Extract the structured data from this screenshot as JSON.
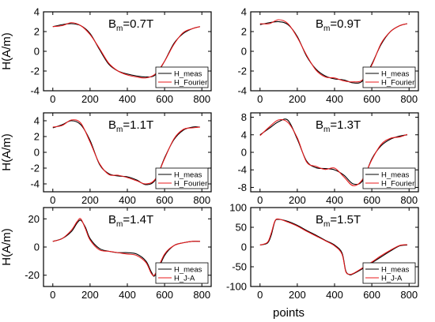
{
  "figure": {
    "xlabel": "points"
  },
  "chart_data": [
    {
      "type": "line",
      "annotation": {
        "base": "B",
        "sub": "m",
        "rest": "=0.7T"
      },
      "ylabel": "H(A/m)",
      "xlim": [
        -50,
        850
      ],
      "ylim": [
        -4,
        4
      ],
      "xticks": [
        0,
        200,
        400,
        600,
        800
      ],
      "yticks": [
        -4,
        -2,
        0,
        2,
        4
      ],
      "legend_position": "bottom-right",
      "series": [
        {
          "name": "H_meas",
          "color": "#000000",
          "x": [
            0,
            50,
            100,
            150,
            200,
            250,
            300,
            350,
            400,
            450,
            500,
            550,
            600,
            650,
            700,
            750,
            790
          ],
          "y": [
            2.5,
            2.7,
            2.8,
            2.6,
            1.8,
            0.2,
            -1.3,
            -2.0,
            -2.3,
            -2.5,
            -2.6,
            -2.4,
            -1.0,
            0.8,
            1.8,
            2.3,
            2.5
          ]
        },
        {
          "name": "H_Fourier",
          "color": "#e8191b",
          "x": [
            0,
            50,
            100,
            150,
            200,
            250,
            300,
            350,
            400,
            450,
            500,
            550,
            600,
            650,
            700,
            750,
            790
          ],
          "y": [
            2.5,
            2.6,
            2.9,
            2.6,
            1.7,
            0.3,
            -1.2,
            -2.0,
            -2.4,
            -2.6,
            -2.7,
            -2.3,
            -1.0,
            0.7,
            1.9,
            2.3,
            2.5
          ]
        }
      ]
    },
    {
      "type": "line",
      "annotation": {
        "base": "B",
        "sub": "m",
        "rest": "=0.9T"
      },
      "ylabel": "",
      "xlim": [
        -50,
        850
      ],
      "ylim": [
        -4,
        4
      ],
      "xticks": [
        0,
        200,
        400,
        600,
        800
      ],
      "yticks": [
        -4,
        -2,
        0,
        2,
        4
      ],
      "legend_position": "bottom-right",
      "series": [
        {
          "name": "H_meas",
          "color": "#000000",
          "x": [
            0,
            50,
            100,
            150,
            200,
            250,
            300,
            350,
            400,
            450,
            500,
            550,
            600,
            650,
            700,
            750,
            790
          ],
          "y": [
            2.7,
            2.9,
            3.0,
            2.7,
            1.5,
            -0.5,
            -1.8,
            -2.5,
            -2.8,
            -2.9,
            -3.2,
            -3.0,
            -1.3,
            0.7,
            2.0,
            2.6,
            2.8
          ]
        },
        {
          "name": "H_Fourier",
          "color": "#e8191b",
          "x": [
            0,
            50,
            100,
            150,
            200,
            250,
            300,
            350,
            400,
            450,
            500,
            550,
            600,
            650,
            700,
            750,
            790
          ],
          "y": [
            2.8,
            2.8,
            3.2,
            2.8,
            1.4,
            -0.4,
            -1.9,
            -2.6,
            -2.7,
            -3.0,
            -3.1,
            -2.9,
            -1.4,
            0.8,
            2.0,
            2.6,
            2.8
          ]
        }
      ]
    },
    {
      "type": "line",
      "annotation": {
        "base": "B",
        "sub": "m",
        "rest": "=1.1T"
      },
      "ylabel": "H(A/m)",
      "xlim": [
        -50,
        850
      ],
      "ylim": [
        -5,
        5
      ],
      "xticks": [
        0,
        200,
        400,
        600,
        800
      ],
      "yticks": [
        -4,
        -2,
        0,
        2,
        4
      ],
      "legend_position": "bottom-right",
      "series": [
        {
          "name": "H_meas",
          "color": "#000000",
          "x": [
            0,
            50,
            100,
            150,
            200,
            250,
            300,
            350,
            400,
            450,
            500,
            550,
            600,
            650,
            700,
            750,
            790
          ],
          "y": [
            3.1,
            3.5,
            4.0,
            3.5,
            1.5,
            -1.5,
            -2.7,
            -3.0,
            -3.1,
            -3.5,
            -4.1,
            -3.5,
            -0.7,
            1.6,
            2.8,
            3.2,
            3.2
          ]
        },
        {
          "name": "H_Fourier",
          "color": "#e8191b",
          "x": [
            0,
            50,
            100,
            150,
            200,
            250,
            300,
            350,
            400,
            450,
            500,
            550,
            600,
            650,
            700,
            750,
            790
          ],
          "y": [
            3.2,
            3.4,
            4.1,
            3.7,
            1.3,
            -1.4,
            -2.8,
            -2.9,
            -3.2,
            -3.6,
            -4.0,
            -3.4,
            -0.8,
            1.7,
            2.9,
            3.1,
            3.2
          ]
        }
      ]
    },
    {
      "type": "line",
      "annotation": {
        "base": "B",
        "sub": "m",
        "rest": "=1.3T"
      },
      "ylabel": "",
      "xlim": [
        -50,
        850
      ],
      "ylim": [
        -9,
        9
      ],
      "xticks": [
        0,
        200,
        400,
        600,
        800
      ],
      "yticks": [
        -8,
        -4,
        0,
        4,
        8
      ],
      "legend_position": "bottom-right",
      "series": [
        {
          "name": "H_meas",
          "color": "#000000",
          "x": [
            0,
            50,
            100,
            150,
            200,
            250,
            300,
            350,
            400,
            450,
            500,
            550,
            600,
            650,
            700,
            750,
            790
          ],
          "y": [
            4.0,
            5.5,
            7.0,
            7.3,
            3.0,
            -2.0,
            -3.5,
            -3.7,
            -4.0,
            -5.2,
            -7.2,
            -6.5,
            -1.5,
            1.5,
            3.0,
            3.7,
            4.0
          ]
        },
        {
          "name": "H_Fourier",
          "color": "#e8191b",
          "x": [
            0,
            50,
            100,
            150,
            200,
            250,
            300,
            350,
            400,
            450,
            500,
            550,
            600,
            650,
            700,
            750,
            790
          ],
          "y": [
            3.8,
            5.8,
            7.4,
            6.8,
            3.3,
            -2.2,
            -3.2,
            -3.9,
            -3.6,
            -5.6,
            -7.6,
            -6.2,
            -1.7,
            1.8,
            3.2,
            3.5,
            4.1
          ]
        }
      ]
    },
    {
      "type": "line",
      "annotation": {
        "base": "B",
        "sub": "m",
        "rest": "=1.4T"
      },
      "ylabel": "H(A/m)",
      "xlim": [
        -50,
        850
      ],
      "ylim": [
        -28,
        28
      ],
      "xticks": [
        0,
        200,
        400,
        600,
        800
      ],
      "yticks": [
        -20,
        0,
        20
      ],
      "legend_position": "bottom-right",
      "series": [
        {
          "name": "H_meas",
          "color": "#000000",
          "x": [
            0,
            50,
            100,
            130,
            150,
            175,
            200,
            250,
            300,
            350,
            400,
            450,
            500,
            530,
            550,
            600,
            650,
            700,
            750,
            790
          ],
          "y": [
            4,
            6,
            11,
            17,
            19,
            14,
            6,
            -1,
            -3,
            -4,
            -4,
            -5,
            -10,
            -18,
            -20,
            -6,
            1,
            3,
            4,
            4
          ]
        },
        {
          "name": "H_J-A",
          "color": "#e8191b",
          "x": [
            0,
            50,
            100,
            130,
            150,
            175,
            200,
            250,
            300,
            350,
            400,
            450,
            500,
            530,
            550,
            600,
            650,
            700,
            750,
            790
          ],
          "y": [
            4,
            6,
            12,
            18,
            20,
            13,
            5,
            -2,
            -3,
            -4,
            -5,
            -6,
            -11,
            -19,
            -19,
            -5,
            1,
            3,
            4,
            4
          ]
        }
      ]
    },
    {
      "type": "line",
      "annotation": {
        "base": "B",
        "sub": "m",
        "rest": "=1.5T"
      },
      "ylabel": "",
      "xlim": [
        -50,
        850
      ],
      "ylim": [
        -100,
        100
      ],
      "xticks": [
        0,
        200,
        400,
        600,
        800
      ],
      "yticks": [
        -100,
        -50,
        0,
        50,
        100
      ],
      "legend_position": "bottom-right",
      "series": [
        {
          "name": "H_meas",
          "color": "#000000",
          "x": [
            0,
            40,
            60,
            80,
            100,
            150,
            200,
            250,
            300,
            350,
            400,
            440,
            460,
            480,
            500,
            550,
            600,
            650,
            700,
            750,
            790
          ],
          "y": [
            5,
            10,
            30,
            65,
            70,
            65,
            55,
            42,
            30,
            17,
            5,
            -15,
            -60,
            -70,
            -68,
            -55,
            -40,
            -25,
            -10,
            3,
            5
          ]
        },
        {
          "name": "H_J-A",
          "color": "#e8191b",
          "x": [
            0,
            40,
            60,
            80,
            100,
            150,
            200,
            250,
            300,
            350,
            400,
            440,
            460,
            480,
            500,
            550,
            600,
            650,
            700,
            750,
            790
          ],
          "y": [
            5,
            12,
            35,
            66,
            71,
            63,
            53,
            40,
            28,
            16,
            3,
            -18,
            -62,
            -69,
            -67,
            -53,
            -38,
            -22,
            -8,
            4,
            6
          ]
        }
      ]
    }
  ]
}
